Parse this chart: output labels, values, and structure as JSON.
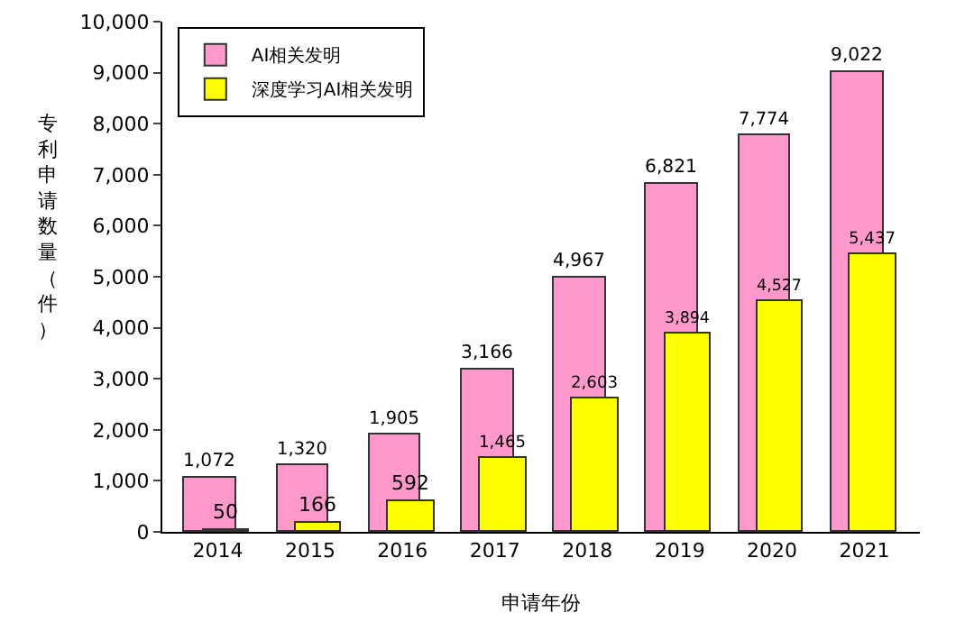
{
  "chart_data": {
    "type": "bar",
    "xlabel": "申请年份",
    "ylabel": "专利申请数量（件）",
    "categories": [
      "2014",
      "2015",
      "2016",
      "2017",
      "2018",
      "2019",
      "2020",
      "2021"
    ],
    "series": [
      {
        "name": "AI相关发明",
        "color": "#ff99cc",
        "values": [
          1072,
          1320,
          1905,
          3166,
          4967,
          6821,
          7774,
          9022
        ],
        "value_labels": [
          "1,072",
          "1,320",
          "1,905",
          "3,166",
          "4,967",
          "6,821",
          "7,774",
          "9,022"
        ]
      },
      {
        "name": "深度学习AI相关发明",
        "color": "#ffff00",
        "values": [
          50,
          166,
          592,
          1465,
          2603,
          3894,
          4527,
          5437
        ],
        "value_labels": [
          "50",
          "166",
          "592",
          "1,465",
          "2,603",
          "3,894",
          "4,527",
          "5,437"
        ]
      }
    ],
    "ylim": [
      0,
      10000
    ],
    "yticks": [
      {
        "value": 0,
        "label": "0"
      },
      {
        "value": 1000,
        "label": "1,000"
      },
      {
        "value": 2000,
        "label": "2,000"
      },
      {
        "value": 3000,
        "label": "3,000"
      },
      {
        "value": 4000,
        "label": "4,000"
      },
      {
        "value": 5000,
        "label": "5,000"
      },
      {
        "value": 6000,
        "label": "6,000"
      },
      {
        "value": 7000,
        "label": "7,000"
      },
      {
        "value": 8000,
        "label": "8,000"
      },
      {
        "value": 9000,
        "label": "9,000"
      },
      {
        "value": 10000,
        "label": "10,000"
      }
    ],
    "grid": false,
    "legend": "top left"
  }
}
